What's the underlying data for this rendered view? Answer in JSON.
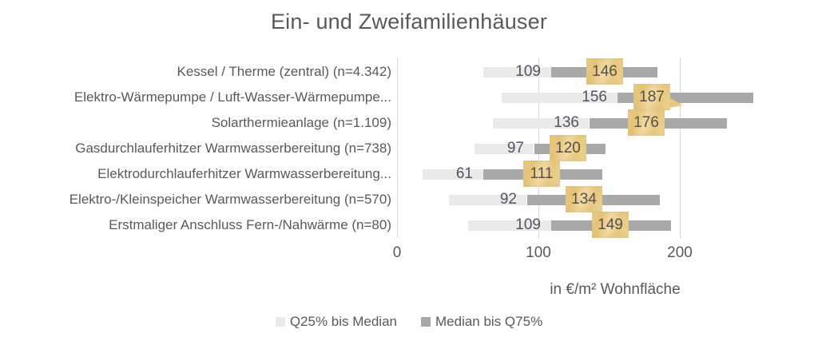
{
  "title": "Ein- und Zweifamilienhäuser",
  "axis": {
    "ticks": [
      "0",
      "100",
      "200"
    ],
    "tick_values": [
      0,
      100,
      200
    ],
    "label": "in €/m² Wohnfläche"
  },
  "legend": [
    {
      "label": "Q25% bis Median",
      "color": "#eaeaea"
    },
    {
      "label": "Median bis Q75%",
      "color": "#a8a8a8"
    }
  ],
  "chart_data": {
    "type": "bar",
    "orientation": "horizontal",
    "title": "Ein- und Zweifamilienhäuser",
    "xlabel": "in €/m² Wohnfläche",
    "xticks": [
      0,
      100,
      200
    ],
    "xlim": [
      0,
      280
    ],
    "grid": "vertical",
    "legend_position": "bottom",
    "series_meta": [
      {
        "name": "Q25% bis Median",
        "from_field": "q25",
        "to_field": "median",
        "color": "#eaeaea"
      },
      {
        "name": "Median bis Q75%",
        "from_field": "median",
        "to_field": "q75",
        "color": "#a8a8a8"
      }
    ],
    "rows": [
      {
        "label": "Kessel / Therme (zentral) (n=4.342)",
        "q25": 61,
        "median": 109,
        "q75": 184,
        "highlight": 146,
        "highlight_pos": 147,
        "callout": false
      },
      {
        "label": "Elektro-Wärmepumpe / Luft-Wasser-Wärmepumpe...",
        "q25": 74,
        "median": 156,
        "q75": 252,
        "highlight": 187,
        "highlight_pos": 180,
        "callout": true
      },
      {
        "label": "Solarthermieanlage (n=1.109)",
        "q25": 68,
        "median": 136,
        "q75": 233,
        "highlight": 176,
        "highlight_pos": 176,
        "callout": false
      },
      {
        "label": "Gasdurchlauferhitzer Warmwasserbereitung (n=738)",
        "q25": 55,
        "median": 97,
        "q75": 147,
        "highlight": 120,
        "highlight_pos": 121,
        "callout": false
      },
      {
        "label": "Elektrodurchlauferhitzer Warmwasserbereitung...",
        "q25": 18,
        "median": 61,
        "q75": 145,
        "highlight": 111,
        "highlight_pos": 102,
        "callout": false
      },
      {
        "label": "Elektro-/Kleinspeicher Warmwasserbereitung (n=570)",
        "q25": 37,
        "median": 92,
        "q75": 186,
        "highlight": 134,
        "highlight_pos": 132,
        "callout": false
      },
      {
        "label": "Erstmaliger Anschluss Fern-/Nahwärme (n=80)",
        "q25": 50,
        "median": 109,
        "q75": 194,
        "highlight": 149,
        "highlight_pos": 151,
        "callout": false
      }
    ],
    "colors": {
      "q25_to_median": "#eaeaea",
      "median_to_q75": "#a8a8a8",
      "highlight_fill": "#e9cb85",
      "gridline": "#d6d6d6",
      "text": "#595959",
      "value_text": "#4f555e"
    }
  }
}
